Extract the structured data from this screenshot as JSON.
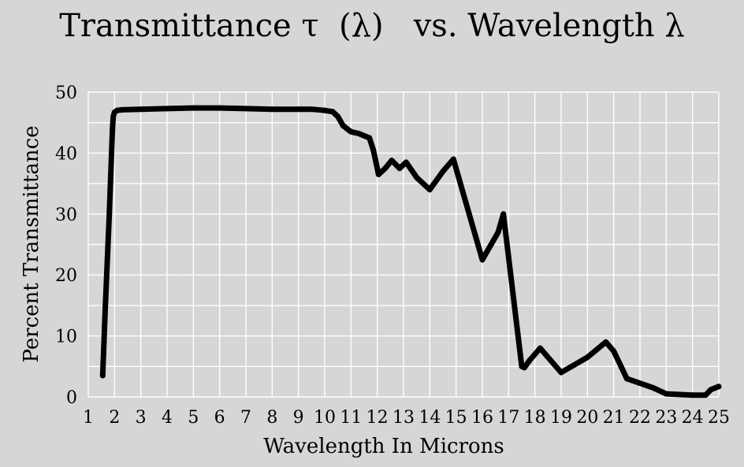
{
  "chart_data": {
    "type": "line",
    "title": "Transmittance τ  (λ)   vs. Wavelength λ",
    "xlabel": "Wavelength In Microns",
    "ylabel": "Percent Transmittance",
    "xlim": [
      1,
      25
    ],
    "ylim": [
      0,
      50
    ],
    "xticks": [
      1,
      2,
      3,
      4,
      5,
      6,
      7,
      8,
      9,
      10,
      11,
      12,
      13,
      14,
      15,
      16,
      17,
      18,
      19,
      20,
      21,
      22,
      23,
      24,
      25
    ],
    "yticks": [
      0,
      10,
      20,
      30,
      40,
      50
    ],
    "grid": true,
    "legend": "none",
    "colors": {
      "line": "#000000",
      "grid": "#ffffff",
      "background": "#d6d6d6"
    },
    "series": [
      {
        "x": [
          1.55,
          1.65,
          1.8,
          1.92,
          1.95,
          2.0,
          2.1,
          2.3,
          3,
          4,
          5,
          6,
          7,
          8,
          9,
          9.5,
          10,
          10.3,
          10.5,
          10.7,
          11.0,
          11.3,
          11.7,
          11.85,
          12.05,
          12.3,
          12.55,
          12.85,
          13.1,
          13.5,
          14.0,
          14.5,
          14.9,
          15.5,
          16.0,
          16.6,
          16.8,
          17.5,
          17.6,
          17.8,
          18.2,
          19.0,
          20.0,
          20.7,
          21.0,
          21.3,
          21.5,
          22.5,
          23.0,
          24.0,
          24.5,
          24.7,
          25.0
        ],
        "y": [
          3.5,
          15,
          30,
          44,
          46,
          46.7,
          47,
          47.1,
          47.2,
          47.3,
          47.4,
          47.4,
          47.3,
          47.2,
          47.2,
          47.2,
          47.0,
          46.8,
          46.0,
          44.5,
          43.5,
          43.2,
          42.5,
          40.5,
          36.5,
          37.5,
          38.8,
          37.5,
          38.5,
          36.0,
          34.0,
          37.0,
          39.0,
          30.0,
          22.5,
          27.0,
          30.0,
          5.0,
          4.8,
          6.0,
          8.0,
          4.0,
          6.5,
          9.0,
          7.5,
          4.8,
          3.0,
          1.5,
          0.5,
          0.3,
          0.3,
          1.2,
          1.7
        ]
      }
    ]
  }
}
